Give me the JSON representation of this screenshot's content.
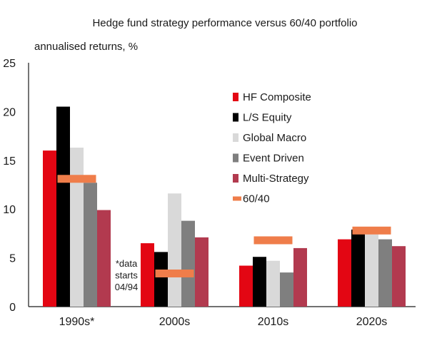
{
  "chart_data": {
    "type": "bar",
    "title": "Hedge fund strategy performance versus 60/40 portfolio",
    "ylabel": "annualised returns, %",
    "xlabel": "",
    "categories": [
      "1990s*",
      "2000s",
      "2010s",
      "2020s"
    ],
    "ylim": [
      0,
      25
    ],
    "yticks": [
      0,
      5,
      10,
      15,
      20,
      25
    ],
    "series": [
      {
        "name": "HF Composite",
        "color": "#e30613",
        "values": [
          16.0,
          6.5,
          4.2,
          6.9
        ]
      },
      {
        "name": "L/S Equity",
        "color": "#000000",
        "values": [
          20.5,
          5.6,
          5.1,
          7.9
        ]
      },
      {
        "name": "Global Macro",
        "color": "#d9d9d9",
        "values": [
          16.3,
          11.6,
          4.7,
          7.4
        ]
      },
      {
        "name": "Event Driven",
        "color": "#7f7f7f",
        "values": [
          12.7,
          8.8,
          3.5,
          6.9
        ]
      },
      {
        "name": "Multi-Strategy",
        "color": "#b23a4f",
        "values": [
          9.9,
          7.1,
          6.0,
          6.2
        ]
      }
    ],
    "benchmark": {
      "name": "60/40",
      "color": "#ef7d4a",
      "values": [
        13.1,
        3.4,
        6.8,
        7.8
      ]
    },
    "annotation": [
      "*data",
      "starts",
      "04/94"
    ],
    "legend_position": "right",
    "grid": false
  }
}
